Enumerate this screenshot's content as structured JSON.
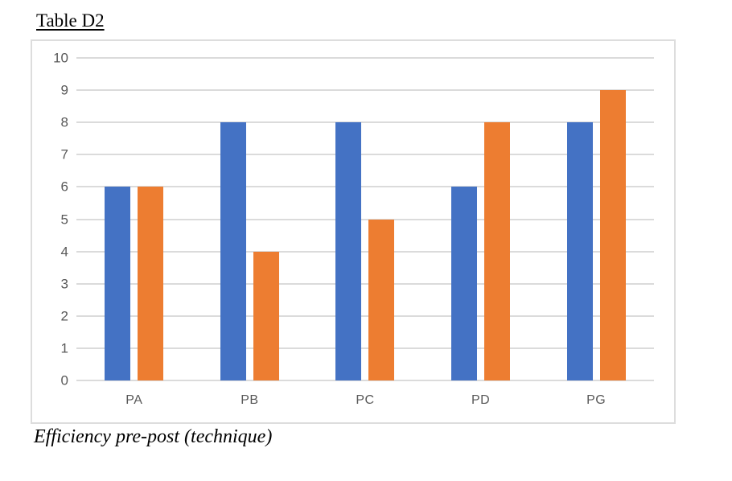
{
  "title": "Table D2",
  "caption": "Efficiency pre-post (technique)",
  "colors": {
    "blue_series": "#4472C4",
    "orange_series": "#ED7D31",
    "gridline": "#DBDBDB",
    "axis_text": "#595959",
    "frame_border": "#DDDDDD"
  },
  "chart_data": {
    "type": "bar",
    "title": "Table D2",
    "subtitle": "",
    "xlabel": "",
    "ylabel": "",
    "categories": [
      "PA",
      "PB",
      "PC",
      "PD",
      "PG"
    ],
    "series": [
      {
        "name": "blue",
        "color": "#4472C4",
        "values": [
          6,
          8,
          8,
          6,
          8
        ]
      },
      {
        "name": "orange",
        "color": "#ED7D31",
        "values": [
          6,
          4,
          5,
          8,
          9
        ]
      }
    ],
    "ylim": [
      0,
      10
    ],
    "yticks": [
      0,
      1,
      2,
      3,
      4,
      5,
      6,
      7,
      8,
      9,
      10
    ],
    "grid": true,
    "legend": false,
    "caption_below": "Efficiency pre-post (technique)"
  }
}
